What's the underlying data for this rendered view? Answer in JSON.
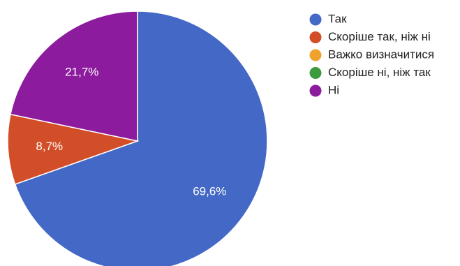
{
  "chart_data": {
    "type": "pie",
    "slices": [
      {
        "label": "Так",
        "value": 69.6,
        "display": "69,6%",
        "color": "#4468c6"
      },
      {
        "label": "Скоріше так, ніж ні",
        "value": 8.7,
        "display": "8,7%",
        "color": "#d24e28"
      },
      {
        "label": "Важко визначитися",
        "value": 0,
        "display": "",
        "color": "#f0a22c"
      },
      {
        "label": "Скоріше ні, ніж так",
        "value": 0,
        "display": "",
        "color": "#3c9b3f"
      },
      {
        "label": "Ні",
        "value": 21.7,
        "display": "21,7%",
        "color": "#8c1b9e"
      }
    ],
    "start_angle": "top",
    "direction": "clockwise",
    "legend_position": "right"
  }
}
